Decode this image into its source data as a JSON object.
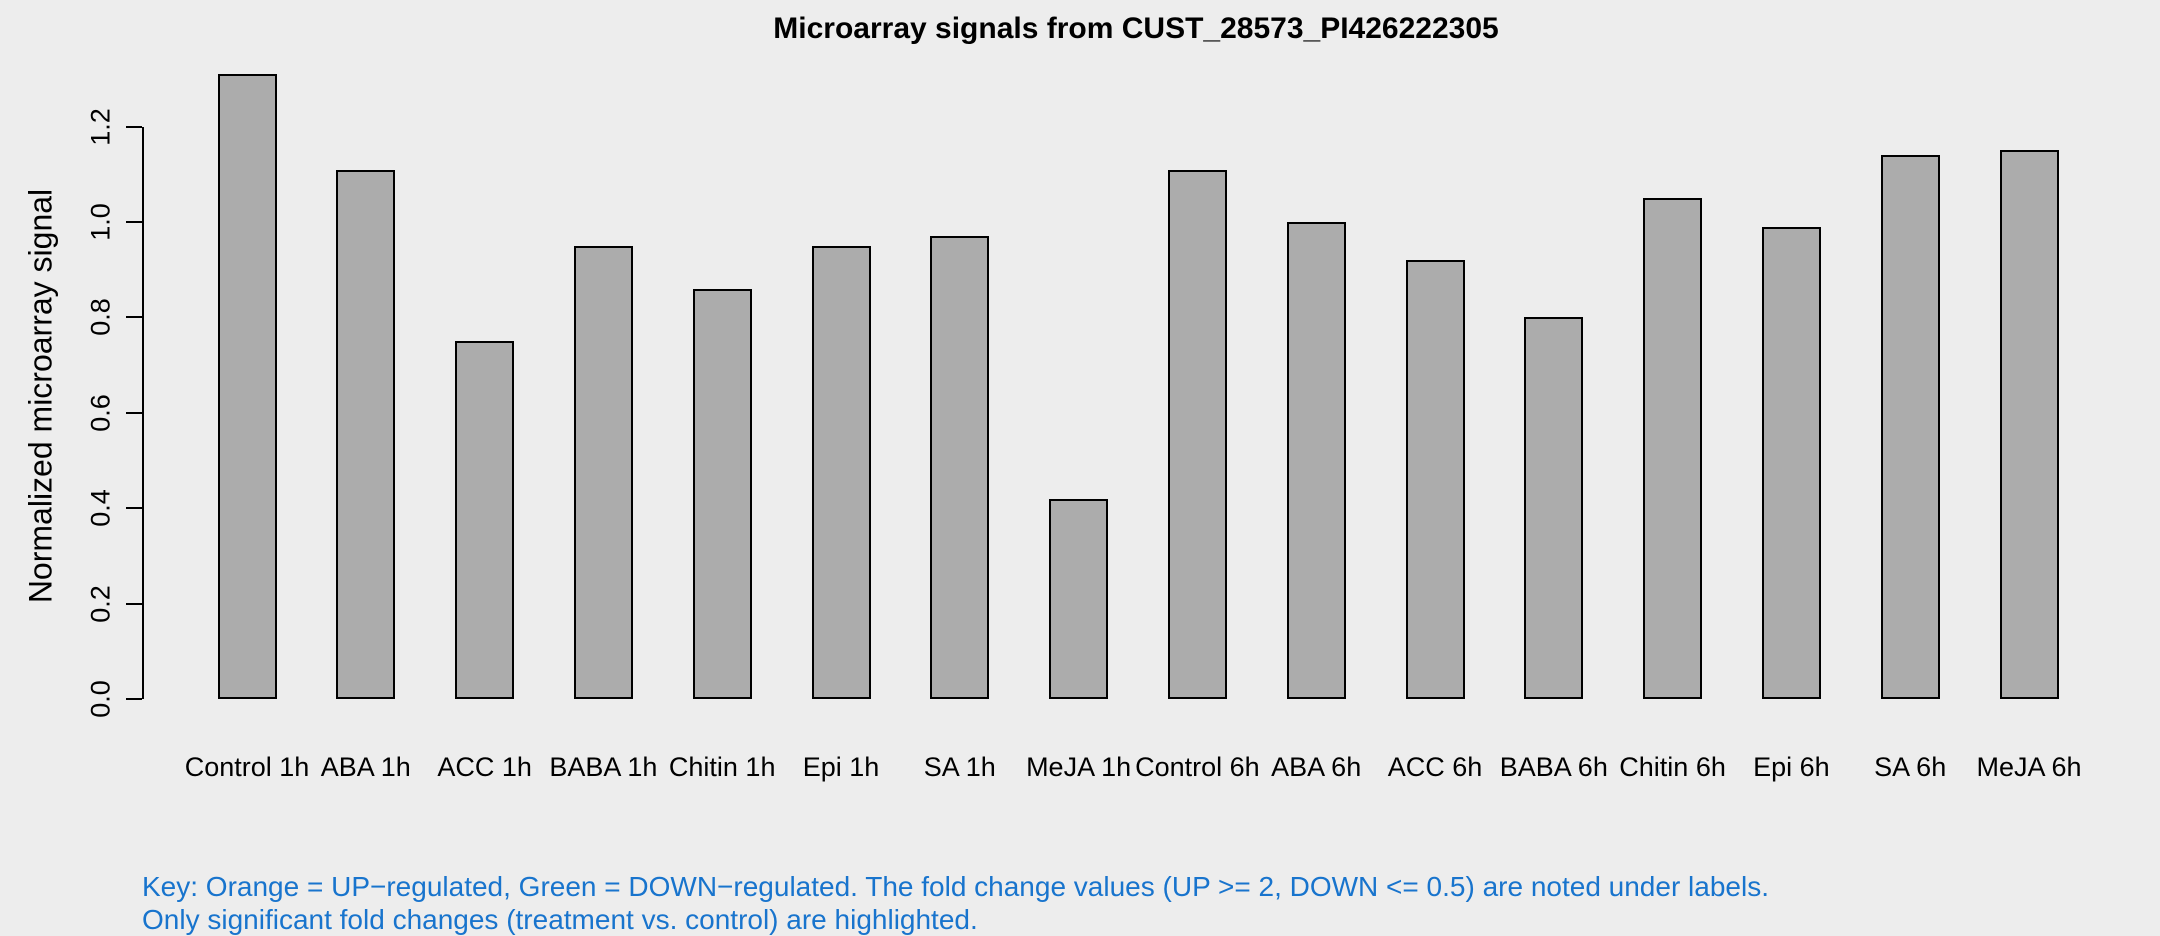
{
  "page": {
    "background": "#EDEDED"
  },
  "chart_data": {
    "type": "bar",
    "title": "Microarray signals from CUST_28573_PI426222305",
    "xlabel": "",
    "ylabel": "Normalized microarray signal",
    "categories": [
      "Control 1h",
      "ABA 1h",
      "ACC 1h",
      "BABA 1h",
      "Chitin 1h",
      "Epi 1h",
      "SA 1h",
      "MeJA 1h",
      "Control 6h",
      "ABA 6h",
      "ACC 6h",
      "BABA 6h",
      "Chitin 6h",
      "Epi 6h",
      "SA 6h",
      "MeJA 6h"
    ],
    "values": [
      1.31,
      1.11,
      0.75,
      0.95,
      0.86,
      0.95,
      0.97,
      0.42,
      1.11,
      1.0,
      0.92,
      0.8,
      1.05,
      0.99,
      1.14,
      1.15
    ],
    "yticks": [
      0.0,
      0.2,
      0.4,
      0.6,
      0.8,
      1.0,
      1.2
    ],
    "ylim": [
      0,
      1.32
    ],
    "grid": false,
    "legend": "none",
    "bar_fill": "#ACACAC",
    "bar_border": "#000000",
    "axis_color": "#000000"
  },
  "footer": {
    "key_line1": "Key: Orange = UP−regulated, Green = DOWN−regulated. The fold change values (UP >= 2, DOWN <= 0.5) are noted under labels.",
    "key_line2": "Only significant fold changes (treatment vs. control) are highlighted.",
    "key_color": "#1874CD"
  }
}
